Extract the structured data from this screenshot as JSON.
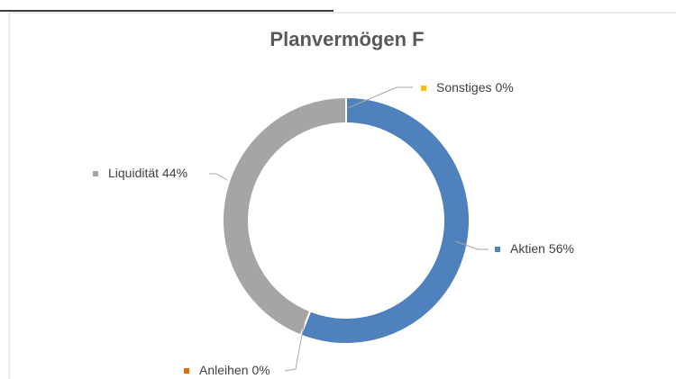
{
  "chart_data": {
    "type": "donut",
    "title": "Planvermögen F",
    "categories": [
      "Aktien",
      "Anleihen",
      "Liquidität",
      "Sonstiges"
    ],
    "values": [
      56,
      0,
      44,
      0
    ],
    "value_labels": [
      "56%",
      "0%",
      "44%",
      "0%"
    ],
    "colors": [
      "#4f81bd",
      "#e46c0a",
      "#a5a5a5",
      "#ffc000"
    ]
  }
}
